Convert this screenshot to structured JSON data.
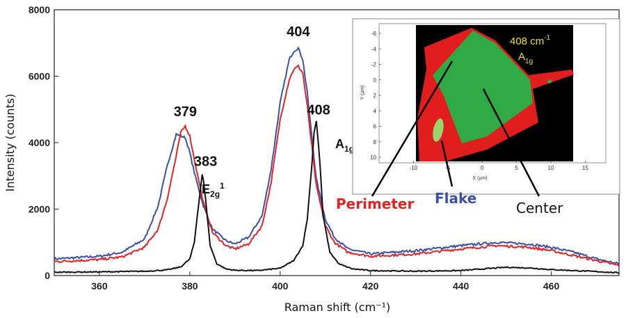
{
  "chart_data": {
    "type": "line",
    "xlabel": "Raman shift (cm⁻¹)",
    "ylabel": "Intensity (counts)",
    "xlim": [
      350,
      475
    ],
    "ylim": [
      0,
      8000
    ],
    "x_ticks": [
      "360",
      "380",
      "400",
      "420",
      "440",
      "460"
    ],
    "y_ticks": [
      "0",
      "2000",
      "4000",
      "6000",
      "8000"
    ],
    "grid": false,
    "series": [
      {
        "name": "Flake",
        "color": "#3a4fa8",
        "x": [
          350,
          360,
          365,
          370,
          373,
          375,
          377,
          379,
          380,
          381,
          383,
          385,
          388,
          390,
          393,
          396,
          398,
          400,
          402,
          403,
          404,
          405,
          406,
          407,
          408,
          410,
          412,
          415,
          420,
          430,
          440,
          448,
          455,
          460,
          465,
          470,
          475
        ],
        "y": [
          500,
          580,
          700,
          1100,
          2100,
          3300,
          4250,
          4150,
          3700,
          3100,
          2100,
          1400,
          1050,
          950,
          1150,
          1800,
          3200,
          5200,
          6500,
          6750,
          6850,
          6500,
          5500,
          4200,
          2900,
          1700,
          1150,
          800,
          650,
          750,
          900,
          1000,
          950,
          850,
          700,
          500,
          350
        ]
      },
      {
        "name": "Perimeter",
        "color": "#e02424",
        "x": [
          350,
          360,
          365,
          370,
          373,
          375,
          377,
          378,
          379,
          380,
          381,
          383,
          385,
          388,
          390,
          393,
          396,
          398,
          400,
          402,
          403,
          404,
          405,
          406,
          407,
          408,
          410,
          412,
          415,
          420,
          430,
          440,
          448,
          455,
          460,
          465,
          470,
          475
        ],
        "y": [
          420,
          480,
          560,
          850,
          1400,
          2300,
          3600,
          4300,
          4500,
          4200,
          3500,
          2200,
          1300,
          900,
          800,
          950,
          1500,
          2800,
          4700,
          5900,
          6200,
          6300,
          6100,
          5100,
          3900,
          2700,
          1500,
          1000,
          700,
          580,
          650,
          800,
          900,
          850,
          750,
          600,
          450,
          300
        ]
      },
      {
        "name": "Center",
        "color": "#111111",
        "x": [
          350,
          360,
          370,
          375,
          378,
          380,
          381,
          382,
          382.8,
          383.5,
          384.5,
          386,
          388,
          390,
          395,
          400,
          403,
          405,
          406,
          407,
          407.5,
          408,
          408.7,
          409.5,
          411,
          413,
          416,
          420,
          430,
          440,
          450,
          455,
          460,
          470,
          475
        ],
        "y": [
          100,
          110,
          130,
          170,
          260,
          500,
          1000,
          2200,
          3100,
          2300,
          900,
          350,
          200,
          160,
          150,
          220,
          450,
          900,
          1700,
          3300,
          4300,
          4650,
          3600,
          1800,
          700,
          350,
          200,
          150,
          130,
          150,
          250,
          230,
          180,
          120,
          80
        ]
      }
    ],
    "peak_labels": [
      {
        "text": "379",
        "x": 379,
        "y": 4800
      },
      {
        "text": "383",
        "x": 383.5,
        "y": 3300
      },
      {
        "text": "404",
        "x": 404,
        "y": 7200
      },
      {
        "text": "408",
        "x": 408.5,
        "y": 4850
      }
    ],
    "mode_labels": [
      {
        "base": "E",
        "sub": "2g",
        "sup": "1"
      },
      {
        "base": "A",
        "sub": "1g",
        "sup": ""
      }
    ],
    "legend": [
      {
        "text": "Perimeter",
        "color": "#e02424"
      },
      {
        "text": "Flake",
        "color": "#3a4fa8"
      },
      {
        "text": "Center",
        "color": "#111111"
      }
    ],
    "inset": {
      "type": "heatmap",
      "xlabel": "X (µm)",
      "ylabel": "Y (µm)",
      "x_ticks": [
        "-10",
        "-5",
        "0",
        "5",
        "10",
        "15"
      ],
      "y_ticks": [
        "-6",
        "-4",
        "-2",
        "0",
        "2",
        "4",
        "6",
        "8",
        "10"
      ],
      "annotation_value": "408 cm",
      "annotation_unit_sup": "-1",
      "annotation_mode": "A",
      "annotation_mode_sub": "1g",
      "colors": {
        "background": "#000000",
        "perimeter": "#e01e1e",
        "center": "#2faa45",
        "flake_spot": "#9bd46a"
      }
    }
  }
}
